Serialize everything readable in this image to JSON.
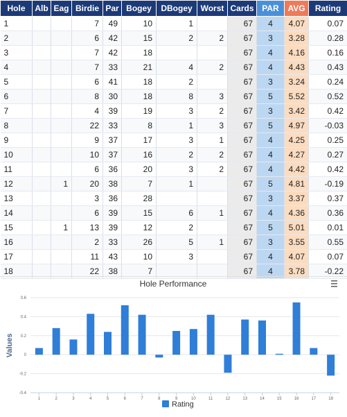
{
  "table": {
    "headers": [
      "Hole",
      "Alb",
      "Eag",
      "Birdie",
      "Par",
      "Bogey",
      "DBogey",
      "Worst",
      "Cards",
      "PAR",
      "AVG",
      "Rating"
    ],
    "rows": [
      [
        "1",
        "",
        "",
        "7",
        "49",
        "10",
        "1",
        "",
        "67",
        "4",
        "4.07",
        "0.07"
      ],
      [
        "2",
        "",
        "",
        "6",
        "42",
        "15",
        "2",
        "2",
        "67",
        "3",
        "3.28",
        "0.28"
      ],
      [
        "3",
        "",
        "",
        "7",
        "42",
        "18",
        "",
        "",
        "67",
        "4",
        "4.16",
        "0.16"
      ],
      [
        "4",
        "",
        "",
        "7",
        "33",
        "21",
        "4",
        "2",
        "67",
        "4",
        "4.43",
        "0.43"
      ],
      [
        "5",
        "",
        "",
        "6",
        "41",
        "18",
        "2",
        "",
        "67",
        "3",
        "3.24",
        "0.24"
      ],
      [
        "6",
        "",
        "",
        "8",
        "30",
        "18",
        "8",
        "3",
        "67",
        "5",
        "5.52",
        "0.52"
      ],
      [
        "7",
        "",
        "",
        "4",
        "39",
        "19",
        "3",
        "2",
        "67",
        "3",
        "3.42",
        "0.42"
      ],
      [
        "8",
        "",
        "",
        "22",
        "33",
        "8",
        "1",
        "3",
        "67",
        "5",
        "4.97",
        "-0.03"
      ],
      [
        "9",
        "",
        "",
        "9",
        "37",
        "17",
        "3",
        "1",
        "67",
        "4",
        "4.25",
        "0.25"
      ],
      [
        "10",
        "",
        "",
        "10",
        "37",
        "16",
        "2",
        "2",
        "67",
        "4",
        "4.27",
        "0.27"
      ],
      [
        "11",
        "",
        "",
        "6",
        "36",
        "20",
        "3",
        "2",
        "67",
        "4",
        "4.42",
        "0.42"
      ],
      [
        "12",
        "",
        "1",
        "20",
        "38",
        "7",
        "1",
        "",
        "67",
        "5",
        "4.81",
        "-0.19"
      ],
      [
        "13",
        "",
        "",
        "3",
        "36",
        "28",
        "",
        "",
        "67",
        "3",
        "3.37",
        "0.37"
      ],
      [
        "14",
        "",
        "",
        "6",
        "39",
        "15",
        "6",
        "1",
        "67",
        "4",
        "4.36",
        "0.36"
      ],
      [
        "15",
        "",
        "1",
        "13",
        "39",
        "12",
        "2",
        "",
        "67",
        "5",
        "5.01",
        "0.01"
      ],
      [
        "16",
        "",
        "",
        "2",
        "33",
        "26",
        "5",
        "1",
        "67",
        "3",
        "3.55",
        "0.55"
      ],
      [
        "17",
        "",
        "",
        "11",
        "43",
        "10",
        "3",
        "",
        "67",
        "4",
        "4.07",
        "0.07"
      ],
      [
        "18",
        "",
        "",
        "22",
        "38",
        "7",
        "",
        "",
        "67",
        "4",
        "3.78",
        "-0.22"
      ]
    ]
  },
  "chart_data": {
    "type": "bar",
    "title": "Hole Performance",
    "ylabel": "Values",
    "categories": [
      "1",
      "2",
      "3",
      "4",
      "5",
      "6",
      "7",
      "8",
      "9",
      "10",
      "11",
      "12",
      "13",
      "14",
      "15",
      "16",
      "17",
      "18"
    ],
    "series": [
      {
        "name": "Rating",
        "values": [
          0.07,
          0.28,
          0.16,
          0.43,
          0.24,
          0.52,
          0.42,
          -0.03,
          0.25,
          0.27,
          0.42,
          -0.19,
          0.37,
          0.36,
          0.01,
          0.55,
          0.07,
          -0.22
        ]
      }
    ],
    "ylim": [
      -0.4,
      0.6
    ],
    "yticks": [
      "0.6",
      "0.4",
      "0.2",
      "0",
      "-0.2",
      "-0.4"
    ],
    "legend_position": "bottom-center",
    "bar_color": "#2f7ed8",
    "menu_icon": "hamburger-menu-icon"
  }
}
